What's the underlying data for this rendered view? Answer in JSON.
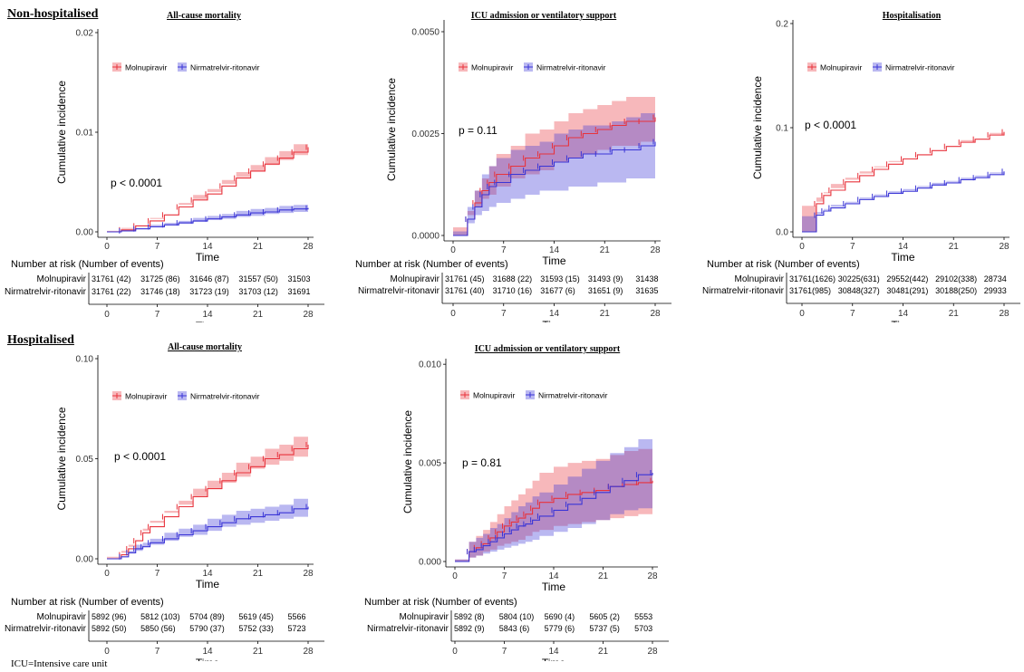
{
  "sections": {
    "top": "Non-hospitalised",
    "bottom": "Hospitalised"
  },
  "footnote": "ICU=Intensive care unit",
  "common": {
    "xlabel": "Time",
    "ylabel": "Cumulative incidence",
    "risk_title": "Number at risk (Number of events)",
    "legend": [
      "Molnupiravir",
      "Nirmatrelvir-ritonavir"
    ],
    "colors": {
      "Molnupiravir": "#e8333c",
      "Nirmatrelvir-ritonavir": "#3a35d6"
    },
    "xticks": [
      "0",
      "7",
      "14",
      "21",
      "28"
    ]
  },
  "chart_data": [
    {
      "type": "line",
      "title": "All-cause mortality",
      "xlabel": "Time",
      "ylabel": "Cumulative incidence",
      "xlim": [
        0,
        28
      ],
      "ylim": [
        0,
        0.02
      ],
      "yticks": [
        "0.00",
        "0.01",
        "0.02"
      ],
      "pvalue": "p < 0.0001",
      "series": [
        {
          "name": "Molnupiravir",
          "x": [
            0,
            2,
            4,
            6,
            8,
            10,
            12,
            14,
            16,
            18,
            20,
            22,
            24,
            26,
            28
          ],
          "y": [
            0,
            0.0002,
            0.0006,
            0.0011,
            0.0017,
            0.0025,
            0.0032,
            0.0038,
            0.0046,
            0.0054,
            0.0061,
            0.0068,
            0.0074,
            0.008,
            0.0085
          ],
          "lo": [
            0,
            0.0001,
            0.0004,
            0.0008,
            0.0013,
            0.0021,
            0.0027,
            0.0033,
            0.004,
            0.0048,
            0.0055,
            0.0061,
            0.0067,
            0.0072,
            0.0077
          ],
          "hi": [
            0,
            0.0003,
            0.0008,
            0.0014,
            0.0021,
            0.0029,
            0.0037,
            0.0043,
            0.0052,
            0.006,
            0.0067,
            0.0075,
            0.0081,
            0.0088,
            0.0093
          ]
        },
        {
          "name": "Nirmatrelvir-ritonavir",
          "x": [
            0,
            2,
            4,
            6,
            8,
            10,
            12,
            14,
            16,
            18,
            20,
            22,
            24,
            26,
            28
          ],
          "y": [
            0,
            0.0001,
            0.0003,
            0.0005,
            0.0007,
            0.0009,
            0.0011,
            0.0013,
            0.0015,
            0.0017,
            0.0019,
            0.002,
            0.0022,
            0.0023,
            0.0024
          ],
          "lo": [
            0,
            0,
            0.0002,
            0.0003,
            0.0005,
            0.0007,
            0.0008,
            0.001,
            0.0012,
            0.0013,
            0.0015,
            0.0016,
            0.0018,
            0.0019,
            0.002
          ],
          "hi": [
            0,
            0.0002,
            0.0004,
            0.0007,
            0.0009,
            0.0011,
            0.0014,
            0.0016,
            0.0018,
            0.0021,
            0.0023,
            0.0024,
            0.0026,
            0.0027,
            0.0028
          ]
        }
      ],
      "risk_table": {
        "Molnupiravir": [
          "31761 (42)",
          "31725 (86)",
          "31646 (87)",
          "31557 (50)",
          "31503"
        ],
        "Nirmatrelvir-ritonavir": [
          "31761 (22)",
          "31746 (18)",
          "31723 (19)",
          "31703 (12)",
          "31691"
        ]
      }
    },
    {
      "type": "line",
      "title": "ICU admission or ventilatory support",
      "xlabel": "Time",
      "ylabel": "Cumulative incidence",
      "xlim": [
        0,
        28
      ],
      "ylim": [
        0,
        0.0052
      ],
      "yticks": [
        "0.0000",
        "0.0025",
        "0.0050"
      ],
      "pvalue": "p = 0.11",
      "series": [
        {
          "name": "Molnupiravir",
          "x": [
            0,
            2,
            3,
            4,
            5,
            6,
            8,
            10,
            12,
            14,
            16,
            18,
            20,
            22,
            24,
            26,
            28
          ],
          "y": [
            0,
            0.0004,
            0.0008,
            0.0011,
            0.0013,
            0.0015,
            0.0017,
            0.0019,
            0.002,
            0.0022,
            0.0024,
            0.0025,
            0.0026,
            0.0027,
            0.0028,
            0.0028,
            0.0029
          ],
          "lo": [
            0,
            0.0002,
            0.0005,
            0.0007,
            0.0009,
            0.001,
            0.0012,
            0.0014,
            0.0015,
            0.0016,
            0.0018,
            0.0019,
            0.002,
            0.0021,
            0.0022,
            0.0022,
            0.0023
          ],
          "hi": [
            0,
            0.0006,
            0.0011,
            0.0014,
            0.0017,
            0.002,
            0.0022,
            0.0025,
            0.0026,
            0.0028,
            0.003,
            0.0031,
            0.0032,
            0.0033,
            0.0034,
            0.0034,
            0.0035
          ]
        },
        {
          "name": "Nirmatrelvir-ritonavir",
          "x": [
            0,
            2,
            3,
            4,
            5,
            6,
            8,
            10,
            12,
            14,
            16,
            18,
            20,
            22,
            24,
            26,
            28
          ],
          "y": [
            0,
            0.0004,
            0.0007,
            0.001,
            0.0012,
            0.0013,
            0.0015,
            0.0016,
            0.0017,
            0.0018,
            0.0019,
            0.002,
            0.002,
            0.0021,
            0.0021,
            0.0022,
            0.0023
          ],
          "lo": [
            0,
            0.0001,
            0.0003,
            0.0005,
            0.0006,
            0.0007,
            0.0008,
            0.0009,
            0.001,
            0.0011,
            0.0011,
            0.0012,
            0.0012,
            0.0013,
            0.0013,
            0.0014,
            0.0014
          ],
          "hi": [
            0,
            0.0007,
            0.0011,
            0.0015,
            0.0017,
            0.0019,
            0.0021,
            0.0022,
            0.0023,
            0.0025,
            0.0026,
            0.0027,
            0.0027,
            0.0028,
            0.0029,
            0.003,
            0.003
          ]
        }
      ],
      "risk_table": {
        "Molnupiravir": [
          "31761 (45)",
          "31688 (22)",
          "31593 (15)",
          "31493 (9)",
          "31438"
        ],
        "Nirmatrelvir-ritonavir": [
          "31761 (40)",
          "31710 (16)",
          "31677 (6)",
          "31651 (9)",
          "31635"
        ]
      }
    },
    {
      "type": "line",
      "title": "Hospitalisation",
      "xlabel": "Time",
      "ylabel": "Cumulative incidence",
      "xlim": [
        0,
        28
      ],
      "ylim": [
        0,
        0.2
      ],
      "yticks": [
        "0.0",
        "0.1",
        "0.2"
      ],
      "pvalue": "p < 0.0001",
      "series": [
        {
          "name": "Molnupiravir",
          "x": [
            0,
            2,
            3,
            4,
            6,
            8,
            10,
            12,
            14,
            16,
            18,
            20,
            22,
            24,
            26,
            28
          ],
          "y": [
            0,
            0.027,
            0.035,
            0.04,
            0.048,
            0.054,
            0.06,
            0.065,
            0.07,
            0.074,
            0.078,
            0.082,
            0.086,
            0.089,
            0.093,
            0.096
          ],
          "lo": [
            0,
            0.025,
            0.033,
            0.038,
            0.046,
            0.052,
            0.058,
            0.063,
            0.068,
            0.072,
            0.076,
            0.08,
            0.084,
            0.087,
            0.091,
            0.094
          ],
          "hi": [
            0,
            0.029,
            0.037,
            0.042,
            0.05,
            0.056,
            0.062,
            0.067,
            0.072,
            0.076,
            0.08,
            0.084,
            0.088,
            0.091,
            0.095,
            0.098
          ]
        },
        {
          "name": "Nirmatrelvir-ritonavir",
          "x": [
            0,
            2,
            3,
            4,
            6,
            8,
            10,
            12,
            14,
            16,
            18,
            20,
            22,
            24,
            26,
            28
          ],
          "y": [
            0,
            0.016,
            0.02,
            0.023,
            0.027,
            0.031,
            0.034,
            0.037,
            0.039,
            0.042,
            0.045,
            0.047,
            0.05,
            0.052,
            0.055,
            0.058
          ],
          "lo": [
            0,
            0.015,
            0.019,
            0.022,
            0.026,
            0.029,
            0.032,
            0.035,
            0.037,
            0.04,
            0.043,
            0.045,
            0.048,
            0.05,
            0.053,
            0.056
          ],
          "hi": [
            0,
            0.017,
            0.021,
            0.024,
            0.028,
            0.033,
            0.036,
            0.039,
            0.041,
            0.044,
            0.047,
            0.049,
            0.052,
            0.054,
            0.057,
            0.06
          ]
        }
      ],
      "risk_table": {
        "Molnupiravir": [
          "31761(1626)",
          "30225(631)",
          "29552(442)",
          "29102(338)",
          "28734"
        ],
        "Nirmatrelvir-ritonavir": [
          "31761(985)",
          "30848(327)",
          "30481(291)",
          "30188(250)",
          "29933"
        ]
      }
    },
    {
      "type": "line",
      "title": "All-cause mortality",
      "xlabel": "Time",
      "ylabel": "Cumulative incidence",
      "xlim": [
        0,
        28
      ],
      "ylim": [
        0,
        0.1
      ],
      "yticks": [
        "0.00",
        "0.05",
        "0.10"
      ],
      "pvalue": "p < 0.0001",
      "series": [
        {
          "name": "Molnupiravir",
          "x": [
            0,
            2,
            3,
            4,
            5,
            6,
            8,
            10,
            12,
            14,
            16,
            18,
            20,
            22,
            24,
            26,
            28
          ],
          "y": [
            0,
            0.002,
            0.005,
            0.009,
            0.013,
            0.016,
            0.021,
            0.026,
            0.031,
            0.035,
            0.039,
            0.043,
            0.046,
            0.05,
            0.052,
            0.055,
            0.057
          ],
          "lo": [
            0,
            0.001,
            0.004,
            0.007,
            0.011,
            0.014,
            0.018,
            0.023,
            0.027,
            0.031,
            0.035,
            0.038,
            0.041,
            0.045,
            0.047,
            0.049,
            0.051
          ],
          "hi": [
            0,
            0.003,
            0.006,
            0.011,
            0.015,
            0.019,
            0.024,
            0.029,
            0.035,
            0.039,
            0.043,
            0.048,
            0.051,
            0.055,
            0.057,
            0.061,
            0.063
          ]
        },
        {
          "name": "Nirmatrelvir-ritonavir",
          "x": [
            0,
            2,
            3,
            4,
            5,
            6,
            8,
            10,
            12,
            14,
            16,
            18,
            20,
            22,
            24,
            26,
            28
          ],
          "y": [
            0,
            0.001,
            0.003,
            0.005,
            0.006,
            0.008,
            0.01,
            0.012,
            0.014,
            0.016,
            0.018,
            0.02,
            0.021,
            0.022,
            0.023,
            0.025,
            0.026
          ],
          "lo": [
            0,
            0,
            0.002,
            0.003,
            0.004,
            0.006,
            0.007,
            0.009,
            0.011,
            0.012,
            0.014,
            0.016,
            0.017,
            0.018,
            0.019,
            0.02,
            0.021
          ],
          "hi": [
            0,
            0.002,
            0.004,
            0.007,
            0.008,
            0.01,
            0.013,
            0.015,
            0.017,
            0.02,
            0.022,
            0.024,
            0.025,
            0.026,
            0.027,
            0.03,
            0.031
          ]
        }
      ],
      "risk_table": {
        "Molnupiravir": [
          "5892 (96)",
          "5812 (103)",
          "5704 (89)",
          "5619 (45)",
          "5566"
        ],
        "Nirmatrelvir-ritonavir": [
          "5892 (50)",
          "5850 (56)",
          "5790 (37)",
          "5752 (33)",
          "5723"
        ]
      }
    },
    {
      "type": "line",
      "title": "ICU admission or ventilatory support",
      "xlabel": "Time",
      "ylabel": "Cumulative incidence",
      "xlim": [
        0,
        28
      ],
      "ylim": [
        0,
        0.0101
      ],
      "yticks": [
        "0.000",
        "0.005",
        "0.010"
      ],
      "pvalue": "p = 0.81",
      "series": [
        {
          "name": "Molnupiravir",
          "x": [
            0,
            2,
            3,
            4,
            5,
            6,
            7,
            8,
            9,
            10,
            11,
            12,
            14,
            16,
            18,
            20,
            22,
            24,
            26,
            28
          ],
          "y": [
            0,
            0.0005,
            0.0007,
            0.0009,
            0.0012,
            0.0015,
            0.0018,
            0.002,
            0.0022,
            0.0024,
            0.0027,
            0.003,
            0.0032,
            0.0034,
            0.0035,
            0.0036,
            0.0038,
            0.0039,
            0.004,
            0.0041
          ],
          "lo": [
            0,
            0.0001,
            0.0002,
            0.0003,
            0.0005,
            0.0006,
            0.0008,
            0.0009,
            0.001,
            0.0011,
            0.0013,
            0.0015,
            0.0016,
            0.0018,
            0.0019,
            0.002,
            0.0021,
            0.0022,
            0.0023,
            0.0024
          ],
          "hi": [
            0,
            0.001,
            0.0013,
            0.0016,
            0.002,
            0.0024,
            0.0028,
            0.0031,
            0.0034,
            0.0037,
            0.0041,
            0.0045,
            0.0048,
            0.005,
            0.0051,
            0.0052,
            0.0054,
            0.0056,
            0.0057,
            0.0058
          ]
        },
        {
          "name": "Nirmatrelvir-ritonavir",
          "x": [
            0,
            2,
            3,
            4,
            5,
            6,
            7,
            8,
            9,
            10,
            11,
            12,
            14,
            16,
            18,
            20,
            22,
            24,
            26,
            28
          ],
          "y": [
            0,
            0.0005,
            0.0006,
            0.0008,
            0.001,
            0.0012,
            0.0014,
            0.0016,
            0.0018,
            0.0019,
            0.0021,
            0.0023,
            0.0026,
            0.0029,
            0.0032,
            0.0035,
            0.0038,
            0.0041,
            0.0044,
            0.0045
          ],
          "lo": [
            0,
            0.0001,
            0.0002,
            0.0003,
            0.0004,
            0.0005,
            0.0006,
            0.0007,
            0.0008,
            0.0009,
            0.001,
            0.0011,
            0.0013,
            0.0015,
            0.0017,
            0.0019,
            0.0021,
            0.0024,
            0.0026,
            0.0027
          ],
          "hi": [
            0,
            0.001,
            0.0012,
            0.0014,
            0.0017,
            0.0019,
            0.0022,
            0.0025,
            0.0028,
            0.003,
            0.0033,
            0.0035,
            0.0039,
            0.0043,
            0.0047,
            0.0051,
            0.0055,
            0.0058,
            0.0062,
            0.0063
          ]
        }
      ],
      "risk_table": {
        "Molnupiravir": [
          "5892 (8)",
          "5804 (10)",
          "5690 (4)",
          "5605 (2)",
          "5553"
        ],
        "Nirmatrelvir-ritonavir": [
          "5892 (9)",
          "5843 (6)",
          "5779 (6)",
          "5737 (5)",
          "5703"
        ]
      }
    }
  ]
}
